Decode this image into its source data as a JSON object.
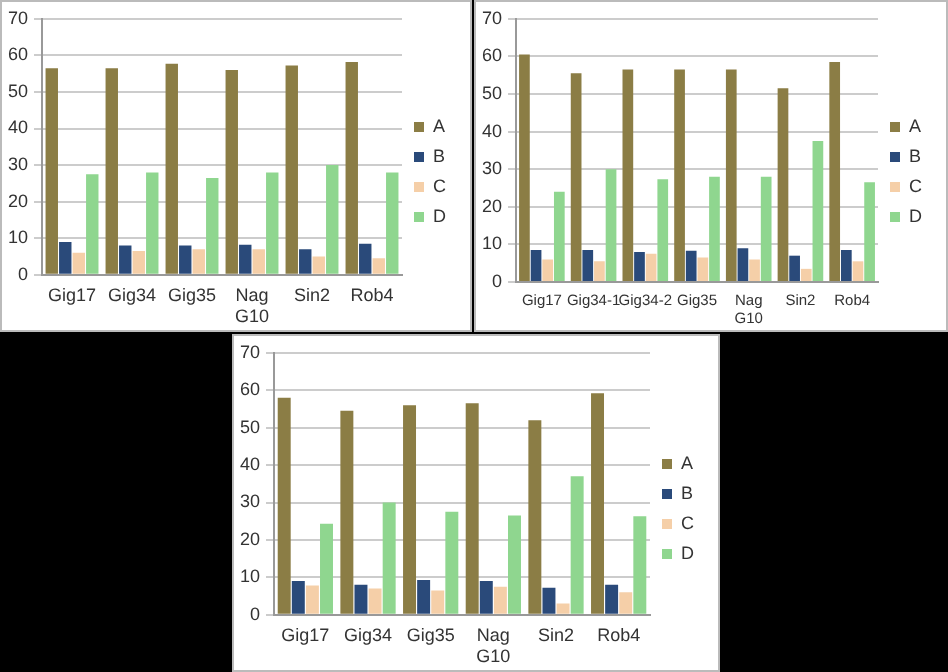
{
  "chart_data": [
    {
      "type": "bar",
      "categories": [
        "Gig17",
        "Gig34",
        "Gig35",
        "Nag G10",
        "Sin2",
        "Rob4"
      ],
      "series": [
        {
          "name": "A",
          "color": "#8b7d45",
          "values": [
            56.5,
            56.5,
            57.7,
            56,
            57.2,
            58.2
          ]
        },
        {
          "name": "B",
          "color": "#2a4a7a",
          "values": [
            9,
            8,
            8,
            8.2,
            7,
            8.5
          ]
        },
        {
          "name": "C",
          "color": "#f5cfa8",
          "values": [
            6,
            6.5,
            7,
            7,
            5,
            4.5
          ]
        },
        {
          "name": "D",
          "color": "#8fd68f",
          "values": [
            27.5,
            28,
            26.5,
            28,
            30,
            28
          ]
        }
      ],
      "ylim": [
        0,
        70
      ],
      "yticks": [
        0,
        10,
        20,
        30,
        40,
        50,
        60,
        70
      ],
      "grid": "y",
      "legend": "right"
    },
    {
      "type": "bar",
      "categories": [
        "Gig17",
        "Gig34-1",
        "Gig34-2",
        "Gig35",
        "Nag G10",
        "Sin2",
        "Rob4"
      ],
      "series": [
        {
          "name": "A",
          "color": "#8b7d45",
          "values": [
            60.5,
            55.5,
            56.5,
            56.5,
            56.5,
            51.5,
            58.5
          ]
        },
        {
          "name": "B",
          "color": "#2a4a7a",
          "values": [
            8.5,
            8.5,
            8,
            8.3,
            9,
            7,
            8.5
          ]
        },
        {
          "name": "C",
          "color": "#f5cfa8",
          "values": [
            6,
            5.5,
            7.5,
            6.5,
            6,
            3.5,
            5.5
          ]
        },
        {
          "name": "D",
          "color": "#8fd68f",
          "values": [
            24,
            30,
            27.3,
            28,
            28,
            37.5,
            26.5
          ]
        }
      ],
      "ylim": [
        0,
        70
      ],
      "yticks": [
        0,
        10,
        20,
        30,
        40,
        50,
        60,
        70
      ],
      "grid": "y",
      "legend": "right"
    },
    {
      "type": "bar",
      "categories": [
        "Gig17",
        "Gig34",
        "Gig35",
        "Nag G10",
        "Sin2",
        "Rob4"
      ],
      "series": [
        {
          "name": "A",
          "color": "#8b7d45",
          "values": [
            58,
            54.5,
            56,
            56.5,
            52,
            59.2
          ]
        },
        {
          "name": "B",
          "color": "#2a4a7a",
          "values": [
            9,
            8,
            9.3,
            9,
            7.2,
            8
          ]
        },
        {
          "name": "C",
          "color": "#f5cfa8",
          "values": [
            7.8,
            7,
            6.5,
            7.5,
            3,
            6
          ]
        },
        {
          "name": "D",
          "color": "#8fd68f",
          "values": [
            24.3,
            30,
            27.5,
            26.5,
            37,
            26.3
          ]
        }
      ],
      "ylim": [
        0,
        70
      ],
      "yticks": [
        0,
        10,
        20,
        30,
        40,
        50,
        60,
        70
      ],
      "grid": "y",
      "legend": "right"
    }
  ]
}
